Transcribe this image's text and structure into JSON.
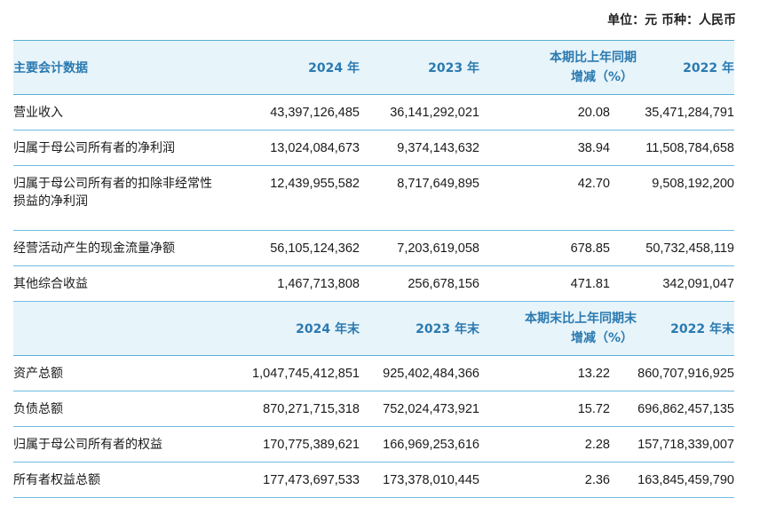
{
  "unit_label": "单位：元  币种：人民币",
  "section1": {
    "headers": [
      "主要会计数据",
      "2024 年",
      "2023 年",
      "本期比上年同期",
      "增减（%）",
      "2022 年"
    ],
    "rows": [
      {
        "label": "营业收入",
        "v2024": "43,397,126,485",
        "v2023": "36,141,292,021",
        "change": "20.08",
        "v2022": "35,471,284,791"
      },
      {
        "label": "归属于母公司所有者的净利润",
        "v2024": "13,024,084,673",
        "v2023": "9,374,143,632",
        "change": "38.94",
        "v2022": "11,508,784,658"
      },
      {
        "label": "归属于母公司所有者的扣除非经常性",
        "label2": "损益的净利润",
        "v2024": "12,439,955,582",
        "v2023": "8,717,649,895",
        "change": "42.70",
        "v2022": "9,508,192,200"
      },
      {
        "label": "经营活动产生的现金流量净额",
        "v2024": "56,105,124,362",
        "v2023": "7,203,619,058",
        "change": "678.85",
        "v2022": "50,732,458,119"
      },
      {
        "label": "其他综合收益",
        "v2024": "1,467,713,808",
        "v2023": "256,678,156",
        "change": "471.81",
        "v2022": "342,091,047"
      }
    ]
  },
  "section2": {
    "headers": [
      "",
      "2024 年末",
      "2023 年末",
      "本期末比上年同期末",
      "增减（%）",
      "2022 年末"
    ],
    "rows": [
      {
        "label": "资产总额",
        "v2024": "1,047,745,412,851",
        "v2023": "925,402,484,366",
        "change": "13.22",
        "v2022": "860,707,916,925"
      },
      {
        "label": "负债总额",
        "v2024": "870,271,715,318",
        "v2023": "752,024,473,921",
        "change": "15.72",
        "v2022": "696,862,457,135"
      },
      {
        "label": "归属于母公司所有者的权益",
        "v2024": "170,775,389,621",
        "v2023": "166,969,253,616",
        "change": "2.28",
        "v2022": "157,718,339,007"
      },
      {
        "label": "所有者权益总额",
        "v2024": "177,473,697,533",
        "v2023": "173,378,010,445",
        "change": "2.36",
        "v2022": "163,845,459,790"
      }
    ]
  },
  "colors": {
    "header_bg": "#e7f4fa",
    "header_text": "#2b7ab0",
    "rule": "#57b0d8"
  }
}
